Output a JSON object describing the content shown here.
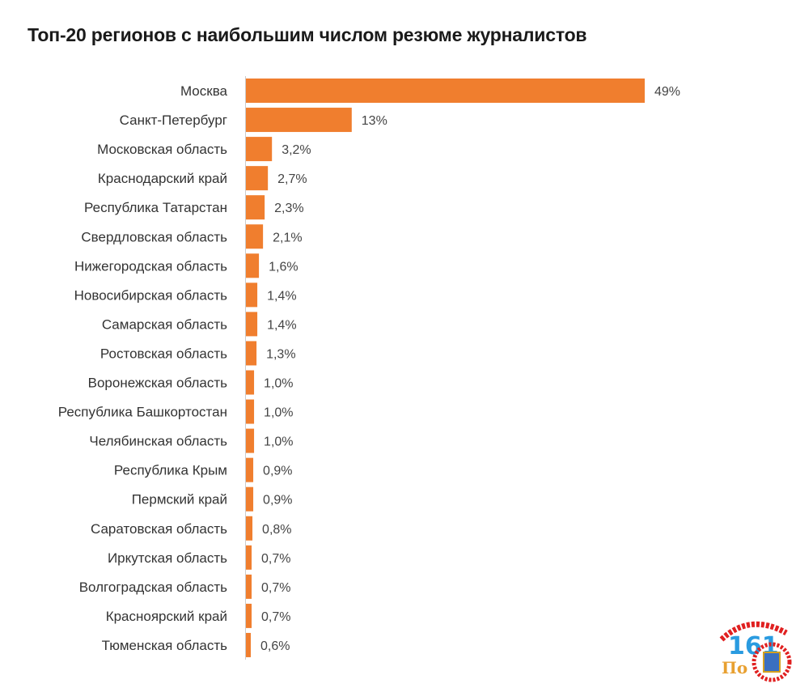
{
  "chart_data": {
    "type": "bar",
    "orientation": "horizontal",
    "title": "Топ-20 регионов с наибольшим числом резюме журналистов",
    "categories": [
      "Москва",
      "Санкт-Петербург",
      "Московская область",
      "Краснодарский край",
      "Республика Татарстан",
      "Свердловская область",
      "Нижегородская область",
      "Новосибирская область",
      "Самарская область",
      "Ростовская область",
      "Воронежская область",
      "Республика Башкортостан",
      "Челябинская область",
      "Республика Крым",
      "Пермский край",
      "Саратовская область",
      "Иркутская область",
      "Волгоградская область",
      "Красноярский край",
      "Тюменская область"
    ],
    "values": [
      49,
      13,
      3.2,
      2.7,
      2.3,
      2.1,
      1.6,
      1.4,
      1.4,
      1.3,
      1.0,
      1.0,
      1.0,
      0.9,
      0.9,
      0.8,
      0.7,
      0.7,
      0.7,
      0.6
    ],
    "data_labels": [
      "49%",
      "13%",
      "3,2%",
      "2,7%",
      "2,3%",
      "2,1%",
      "1,6%",
      "1,4%",
      "1,4%",
      "1,3%",
      "1,0%",
      "1,0%",
      "1,0%",
      "0,9%",
      "0,9%",
      "0,8%",
      "0,7%",
      "0,7%",
      "0,7%",
      "0,6%"
    ],
    "xlim": [
      0,
      49
    ],
    "grid": false,
    "legend": "none",
    "bar_color": "#F07E2E"
  },
  "watermark": {
    "text": "Городской 161 Портал",
    "colors": [
      "#E02020",
      "#2A9BE0",
      "#E8A030"
    ]
  }
}
